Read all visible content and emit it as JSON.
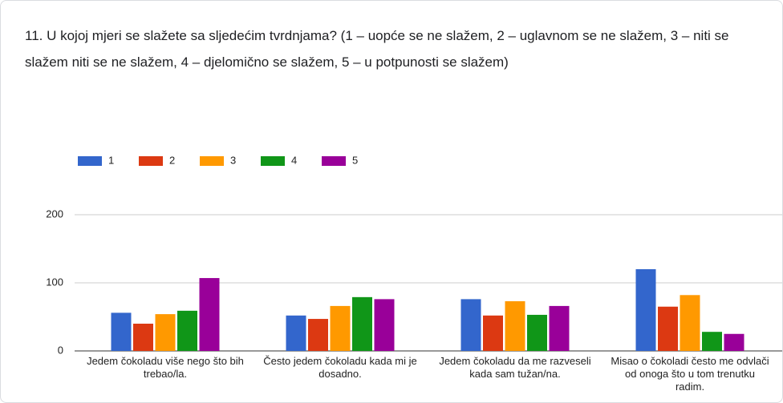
{
  "chart_data": {
    "type": "bar",
    "title": "11. U kojoj mjeri se slažete sa sljedećim tvrdnjama? (1 – uopće se ne slažem, 2 – uglavnom se ne slažem, 3 – niti se slažem niti se ne slažem, 4 – djelomično se slažem, 5 – u potpunosti se slažem)",
    "categories": [
      "Jedem čokoladu više nego što bih trebao/la.",
      "Često jedem čokoladu kada mi je dosadno.",
      "Jedem čokoladu da me razveseli kada sam tužan/na.",
      "Misao o čokoladi često me odvlači od onoga što u tom trenutku radim."
    ],
    "series": [
      {
        "name": "1",
        "color": "#3366cc",
        "values": [
          56,
          52,
          76,
          120
        ]
      },
      {
        "name": "2",
        "color": "#dc3912",
        "values": [
          40,
          47,
          52,
          65
        ]
      },
      {
        "name": "3",
        "color": "#ff9900",
        "values": [
          54,
          66,
          73,
          82
        ]
      },
      {
        "name": "4",
        "color": "#109618",
        "values": [
          59,
          79,
          53,
          28
        ]
      },
      {
        "name": "5",
        "color": "#990099",
        "values": [
          107,
          76,
          66,
          25
        ]
      }
    ],
    "ylim": [
      0,
      200
    ],
    "yticks": [
      0,
      100,
      200
    ],
    "grid": true,
    "legend": "top"
  }
}
